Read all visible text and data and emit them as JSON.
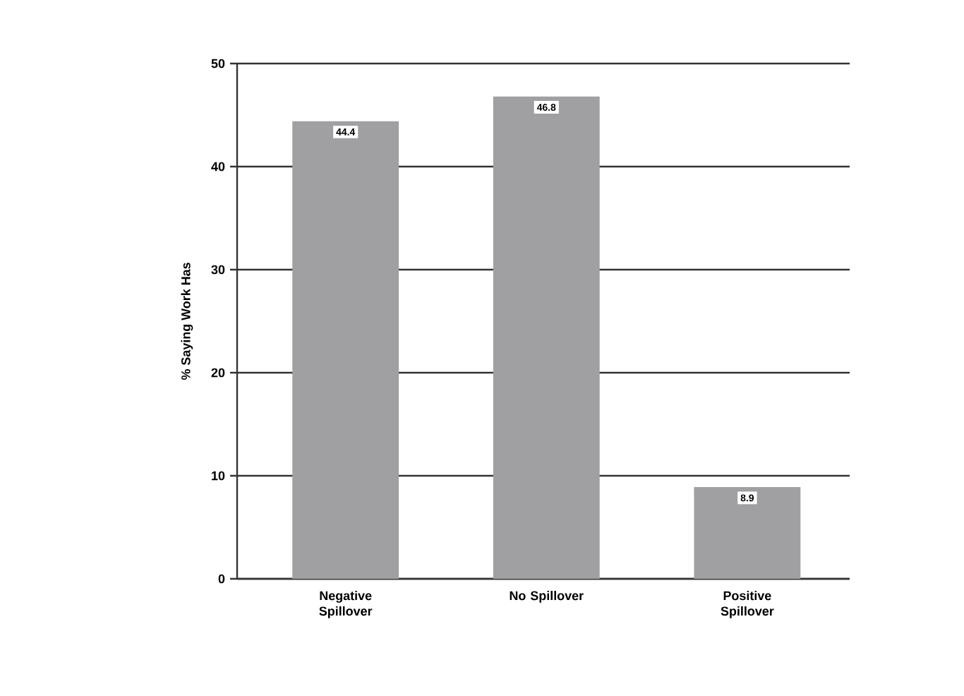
{
  "chart_data": {
    "type": "bar",
    "ylabel": "% Saying Work Has",
    "categories": [
      "Negative Spillover",
      "No Spillover",
      "Positive Spillover"
    ],
    "values": [
      44.4,
      46.8,
      8.9
    ],
    "color": "#a0a0a3",
    "ylim": [
      0,
      50
    ],
    "yticks": [
      0,
      10,
      20,
      30,
      40,
      50
    ],
    "grid": "y",
    "data_labels": true
  }
}
